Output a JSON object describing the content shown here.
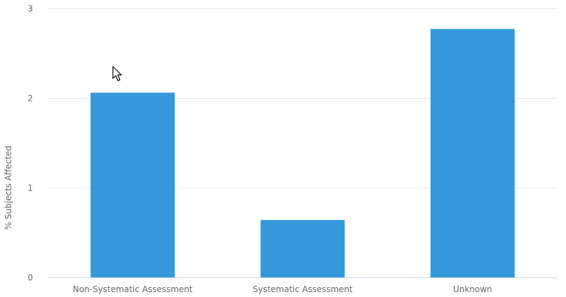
{
  "chart_data": {
    "type": "bar",
    "categories": [
      "Non-Systematic Assessment",
      "Systematic Assessment",
      "Unknown"
    ],
    "values": [
      2.06,
      0.64,
      2.77
    ],
    "ylabel": "% Subjects Affected",
    "xlabel": "",
    "ylim": [
      0,
      3
    ],
    "yticks": [
      "0",
      "1",
      "2",
      "3"
    ],
    "grid": true,
    "legend": "none",
    "bar_color": "#3498db"
  },
  "cursor_icon": "mouse-pointer-icon"
}
